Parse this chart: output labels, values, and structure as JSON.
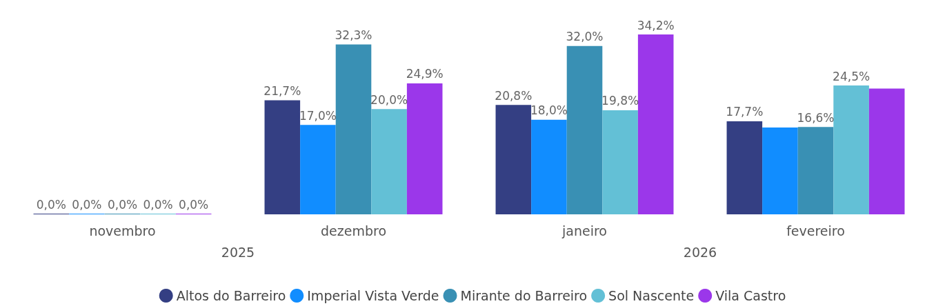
{
  "chart_data": {
    "type": "bar",
    "categories": [
      "novembro",
      "dezembro",
      "janeiro",
      "fevereiro"
    ],
    "series": [
      {
        "name": "Altos do Barreiro",
        "color": "#343f83",
        "values": [
          0,
          21.7,
          20.8,
          17.7
        ],
        "value_labels": [
          "0,0%",
          "21,7%",
          "20,8%",
          "17,7%"
        ]
      },
      {
        "name": "Imperial Vista Verde",
        "color": "#118dff",
        "values": [
          0,
          17.0,
          18.0,
          16.5
        ],
        "value_labels": [
          "0,0%",
          "17,0%",
          "18,0%",
          null
        ]
      },
      {
        "name": "Mirante do Barreiro",
        "color": "#3990b4",
        "values": [
          0,
          32.3,
          32.0,
          16.6
        ],
        "value_labels": [
          "0,0%",
          "32,3%",
          "32,0%",
          "16,6%"
        ]
      },
      {
        "name": "Sol Nascente",
        "color": "#63c0d6",
        "values": [
          0,
          20.0,
          19.8,
          24.5
        ],
        "value_labels": [
          "0,0%",
          "20,0%",
          "19,8%",
          "24,5%"
        ]
      },
      {
        "name": "Vila Castro",
        "color": "#9b37ea",
        "values": [
          0,
          24.9,
          34.2,
          23.9
        ],
        "value_labels": [
          "0,0%",
          "24,9%",
          "34,2%",
          null
        ]
      }
    ],
    "annotations": [
      "2025",
      "2026"
    ],
    "legend": "bottom",
    "tick_labels": "x"
  }
}
